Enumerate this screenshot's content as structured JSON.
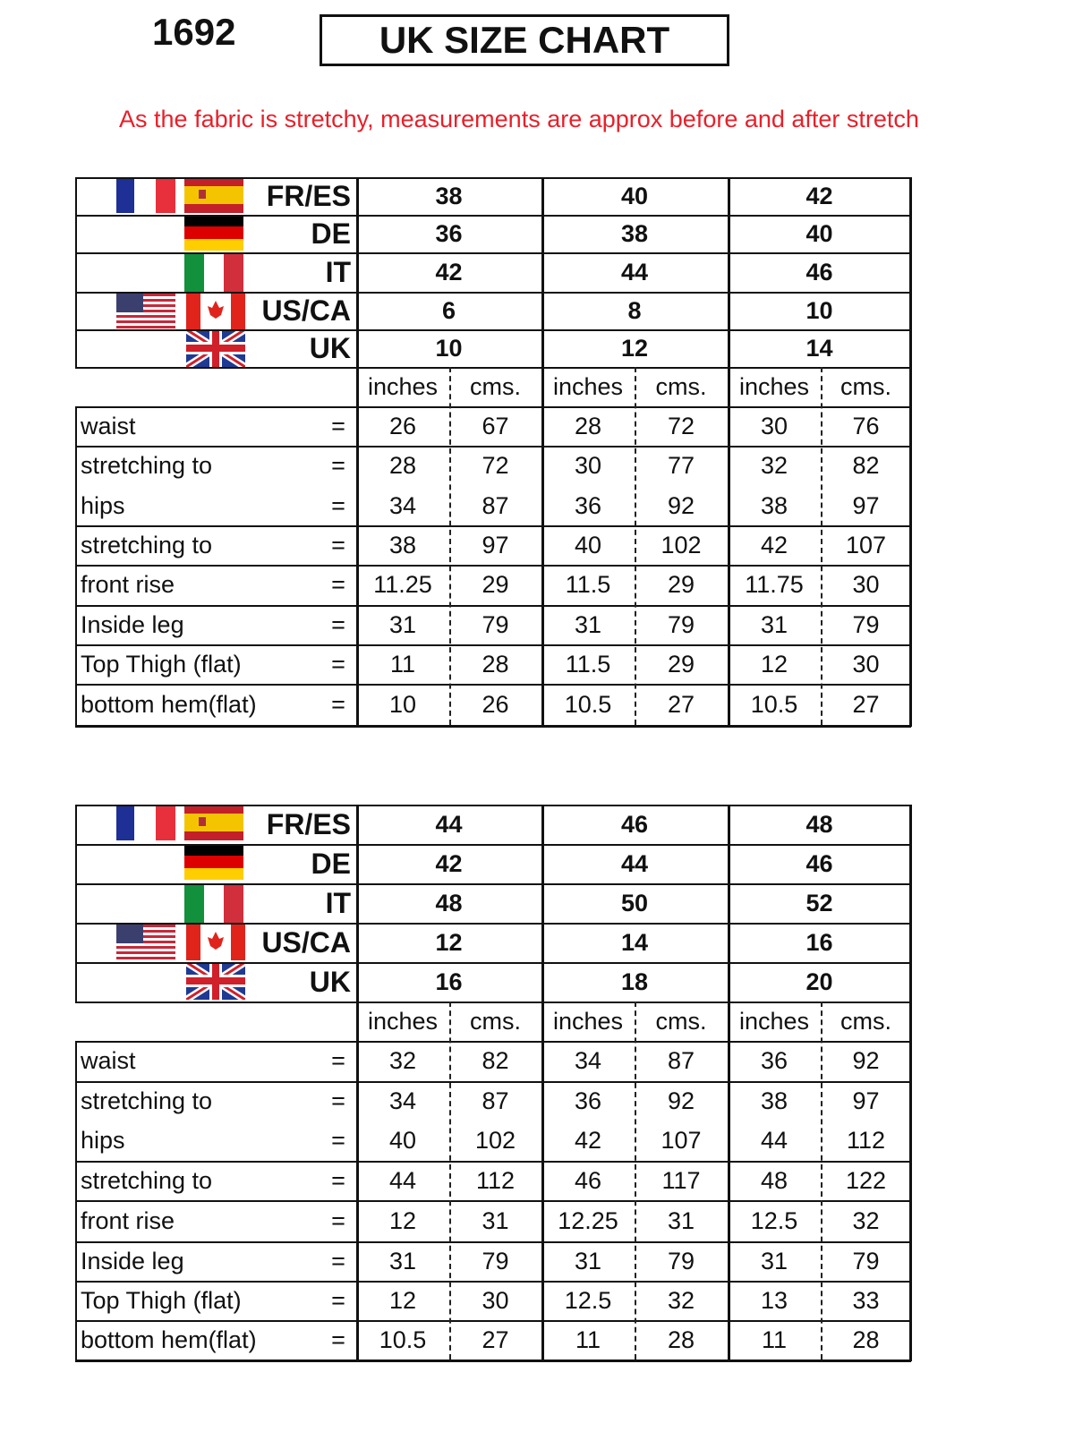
{
  "header": {
    "code": "1692",
    "title": "UK SIZE CHART"
  },
  "note": "As the fabric is stretchy, measurements are approx before and after stretch",
  "colors": {
    "note": "#e8202a"
  },
  "size_systems": [
    {
      "code": "FR/ES",
      "flags": [
        "france-flag-icon",
        "spain-flag-icon"
      ]
    },
    {
      "code": "DE",
      "flags": [
        "germany-flag-icon"
      ]
    },
    {
      "code": "IT",
      "flags": [
        "italy-flag-icon"
      ]
    },
    {
      "code": "US/CA",
      "flags": [
        "usa-flag-icon",
        "canada-flag-icon"
      ]
    },
    {
      "code": "UK",
      "flags": [
        "uk-flag-icon"
      ]
    }
  ],
  "units": [
    "inches",
    "cms."
  ],
  "equals": "=",
  "measure_labels": [
    "waist",
    "stretching to",
    "hips",
    "stretching to",
    "front rise",
    "Inside leg",
    "Top Thigh (flat)",
    "bottom hem(flat)"
  ],
  "tables": [
    {
      "sizes": [
        [
          "38",
          "36",
          "42",
          "6",
          "10"
        ],
        [
          "40",
          "38",
          "44",
          "8",
          "12"
        ],
        [
          "42",
          "40",
          "46",
          "10",
          "14"
        ]
      ],
      "measures": [
        [
          [
            "26",
            "67"
          ],
          [
            "28",
            "72"
          ],
          [
            "30",
            "76"
          ]
        ],
        [
          [
            "28",
            "72"
          ],
          [
            "30",
            "77"
          ],
          [
            "32",
            "82"
          ]
        ],
        [
          [
            "34",
            "87"
          ],
          [
            "36",
            "92"
          ],
          [
            "38",
            "97"
          ]
        ],
        [
          [
            "38",
            "97"
          ],
          [
            "40",
            "102"
          ],
          [
            "42",
            "107"
          ]
        ],
        [
          [
            "11.25",
            "29"
          ],
          [
            "11.5",
            "29"
          ],
          [
            "11.75",
            "30"
          ]
        ],
        [
          [
            "31",
            "79"
          ],
          [
            "31",
            "79"
          ],
          [
            "31",
            "79"
          ]
        ],
        [
          [
            "11",
            "28"
          ],
          [
            "11.5",
            "29"
          ],
          [
            "12",
            "30"
          ]
        ],
        [
          [
            "10",
            "26"
          ],
          [
            "10.5",
            "27"
          ],
          [
            "10.5",
            "27"
          ]
        ]
      ]
    },
    {
      "sizes": [
        [
          "44",
          "42",
          "48",
          "12",
          "16"
        ],
        [
          "46",
          "44",
          "50",
          "14",
          "18"
        ],
        [
          "48",
          "46",
          "52",
          "16",
          "20"
        ]
      ],
      "measures": [
        [
          [
            "32",
            "82"
          ],
          [
            "34",
            "87"
          ],
          [
            "36",
            "92"
          ]
        ],
        [
          [
            "34",
            "87"
          ],
          [
            "36",
            "92"
          ],
          [
            "38",
            "97"
          ]
        ],
        [
          [
            "40",
            "102"
          ],
          [
            "42",
            "107"
          ],
          [
            "44",
            "112"
          ]
        ],
        [
          [
            "44",
            "112"
          ],
          [
            "46",
            "117"
          ],
          [
            "48",
            "122"
          ]
        ],
        [
          [
            "12",
            "31"
          ],
          [
            "12.25",
            "31"
          ],
          [
            "12.5",
            "32"
          ]
        ],
        [
          [
            "31",
            "79"
          ],
          [
            "31",
            "79"
          ],
          [
            "31",
            "79"
          ]
        ],
        [
          [
            "12",
            "30"
          ],
          [
            "12.5",
            "32"
          ],
          [
            "13",
            "33"
          ]
        ],
        [
          [
            "10.5",
            "27"
          ],
          [
            "11",
            "28"
          ],
          [
            "11",
            "28"
          ]
        ]
      ]
    }
  ]
}
